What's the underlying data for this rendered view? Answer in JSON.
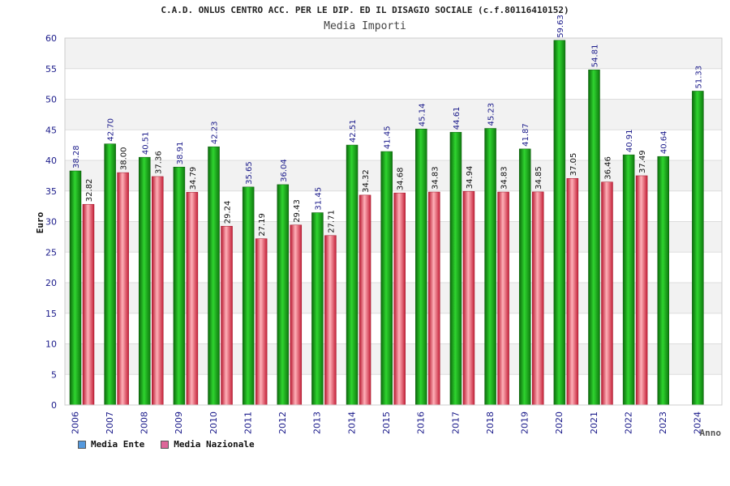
{
  "chart_data": {
    "type": "bar",
    "title": "C.A.D. ONLUS CENTRO ACC. PER LE DIP. ED IL DISAGIO SOCIALE (c.f.80116410152)",
    "subtitle": "Media Importi",
    "xlabel": "Anno",
    "ylabel": "Euro",
    "ylim": [
      0,
      60
    ],
    "yticks": [
      0,
      5,
      10,
      15,
      20,
      25,
      30,
      35,
      40,
      45,
      50,
      55,
      60
    ],
    "categories": [
      "2006",
      "2007",
      "2008",
      "2009",
      "2010",
      "2011",
      "2012",
      "2013",
      "2014",
      "2015",
      "2016",
      "2017",
      "2018",
      "2019",
      "2020",
      "2021",
      "2022",
      "2023",
      "2024"
    ],
    "series": [
      {
        "name": "Media Ente",
        "color": "#1aa01a",
        "labels": [
          "38.28",
          "42.70",
          "40.51",
          "38.91",
          "42.23",
          "35.65",
          "36.04",
          "31.45",
          "42.51",
          "41.45",
          "45.14",
          "44.61",
          "45.23",
          "41.87",
          "59.63",
          "54.81",
          "40.91",
          "40.64",
          "51.33"
        ],
        "values": [
          38.28,
          42.7,
          40.51,
          38.91,
          42.23,
          35.65,
          36.04,
          31.45,
          42.51,
          41.45,
          45.14,
          44.61,
          45.23,
          41.87,
          59.63,
          54.81,
          40.91,
          40.64,
          51.33
        ]
      },
      {
        "name": "Media Nazionale",
        "color": "#e0304a",
        "labels": [
          "32.82",
          "38.00",
          "37.36",
          "34.79",
          "29.24",
          "27.19",
          "29.43",
          "27.71",
          "34.32",
          "34.68",
          "34.83",
          "34.94",
          "34.83",
          "34.85",
          "37.05",
          "36.46",
          "37.49",
          null,
          null
        ],
        "values": [
          32.82,
          38.0,
          37.36,
          34.79,
          29.24,
          27.19,
          29.43,
          27.71,
          34.32,
          34.68,
          34.83,
          34.94,
          34.83,
          34.85,
          37.05,
          36.46,
          37.49,
          null,
          null
        ]
      }
    ],
    "legend": [
      {
        "label": "Media Ente",
        "color": "#5599dd"
      },
      {
        "label": "Media Nazionale",
        "color": "#dd6699"
      }
    ],
    "grid": true,
    "legend_position": "bottom-left"
  }
}
